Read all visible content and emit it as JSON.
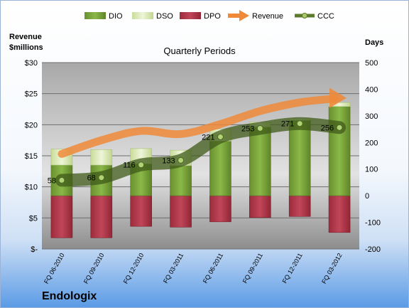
{
  "company": "Endologix",
  "chart_data": {
    "type": "bar",
    "title": "Quarterly Periods",
    "ylabel_left": "Revenue\n$millions",
    "ylabel_right": "Days",
    "categories": [
      "FQ 06-2010",
      "FQ 09-2010",
      "FQ 12-2010",
      "FQ 03-2011",
      "FQ 06-2011",
      "FQ 09-2011",
      "FQ 12-2011",
      "FQ 03-2012"
    ],
    "left_axis": {
      "min": 0,
      "max": 30,
      "ticks": [
        0,
        5,
        10,
        15,
        20,
        25,
        30
      ],
      "tick_labels": [
        "$-",
        "$5",
        "$10",
        "$15",
        "$20",
        "$25",
        "$30"
      ]
    },
    "right_axis": {
      "min": -200,
      "max": 500,
      "ticks": [
        -200,
        -100,
        0,
        100,
        200,
        300,
        400,
        500
      ],
      "tick_labels": [
        "-200",
        "-100",
        "0",
        "100",
        "200",
        "300",
        "400",
        "500"
      ]
    },
    "grid": true,
    "legend_position": "top",
    "series": [
      {
        "name": "DIO",
        "kind": "stacked-bar",
        "axis": "right",
        "color": "#7fa63a",
        "values": [
          115,
          115,
          120,
          113,
          205,
          258,
          283,
          335
        ]
      },
      {
        "name": "DSO",
        "kind": "stacked-bar",
        "axis": "right",
        "color": "#dbe9b6",
        "values": [
          60,
          58,
          57,
          58,
          45,
          18,
          8,
          15
        ]
      },
      {
        "name": "DPO",
        "kind": "negative-bar",
        "axis": "right",
        "color": "#b8374a",
        "values": [
          -158,
          -158,
          -115,
          -118,
          -98,
          -82,
          -78,
          -138
        ]
      },
      {
        "name": "Revenue",
        "kind": "arrow-line",
        "axis": "left",
        "color": "#ee8a3a",
        "values": [
          15.3,
          17.5,
          19.0,
          18.5,
          20.1,
          22.2,
          23.6,
          24.3
        ]
      },
      {
        "name": "CCC",
        "kind": "line",
        "axis": "right",
        "color": "#5b7a2c",
        "values": [
          58,
          68,
          116,
          133,
          221,
          253,
          271,
          256
        ],
        "labels": [
          "58",
          "68",
          "116",
          "133",
          "221",
          "253",
          "271",
          "256"
        ]
      }
    ]
  },
  "colors": {
    "dio": "#7fa63a",
    "dso": "#dbe9b6",
    "dpo": "#b8374a",
    "revenue": "#ee8a3a",
    "ccc": "#5b7a2c"
  }
}
